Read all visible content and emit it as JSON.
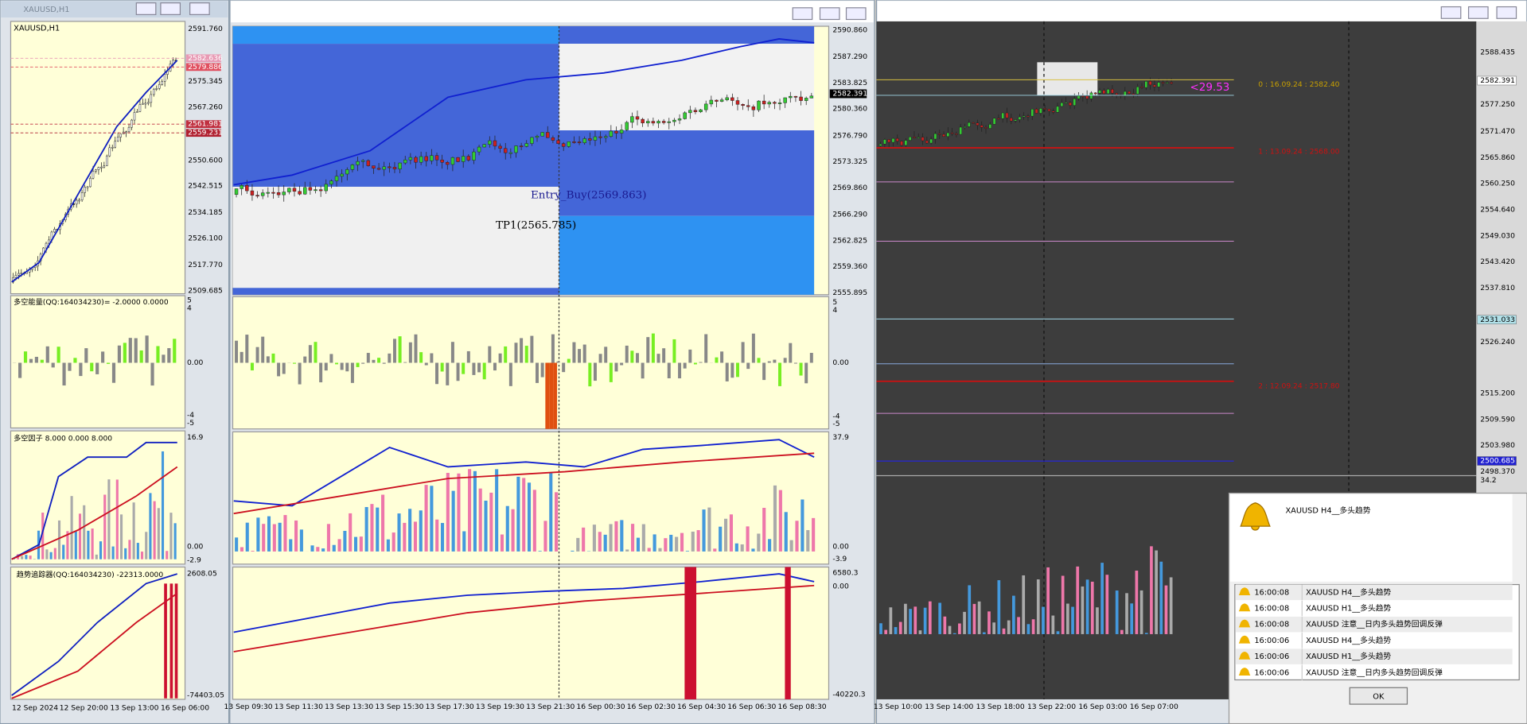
{
  "left_window": {
    "title": "XAUUSD,H1",
    "chart_label": "XAUUSD,H1",
    "price_axis": [
      "2591.760",
      "2575.345",
      "2567.260",
      "2550.600",
      "2542.515",
      "2534.185",
      "2526.100",
      "2517.770",
      "2509.685"
    ],
    "price_tags": [
      {
        "label": "2582.636",
        "color": "#e89ab4"
      },
      {
        "label": "2579.886",
        "color": "#e05060"
      },
      {
        "label": "2561.981",
        "color": "#c03040"
      },
      {
        "label": "2559.231",
        "color": "#b02030"
      }
    ],
    "indicator_1": {
      "label": "多空能量(QQ:164034230)= -2.0000 0.0000",
      "axis": [
        "5",
        "4",
        "0.00",
        "-4",
        "-5"
      ]
    },
    "indicator_2": {
      "label": "多空因子 8.000 0.000 8.000",
      "axis": [
        "16.9",
        "0.00",
        "-2.9"
      ]
    },
    "indicator_3": {
      "label": "趋势追踪器(QQ:164034230)  -22313.0000",
      "axis": [
        "2608.05",
        "-74403.05"
      ]
    },
    "time_axis": [
      "12 Sep 2024",
      "12 Sep 20:00",
      "13 Sep 13:00",
      "16 Sep 06:00"
    ]
  },
  "middle_window": {
    "price_axis": [
      "2590.860",
      "2587.290",
      "2583.825",
      "2580.360",
      "2576.790",
      "2573.325",
      "2569.860",
      "2566.290",
      "2562.825",
      "2559.360",
      "2555.895"
    ],
    "current_price": "2582.391",
    "annotations": [
      "Entry_Buy(2569.863)",
      "TP1(2565.785)"
    ],
    "indicator_1_axis": [
      "5",
      "4",
      "0.00",
      "-4",
      "-5"
    ],
    "indicator_2_axis": [
      "37.9",
      "0.00",
      "-3.9"
    ],
    "indicator_3_axis": [
      "6580.3",
      "0.00",
      "-40220.3"
    ],
    "time_axis": [
      "13 Sep 09:30",
      "13 Sep 11:30",
      "13 Sep 13:30",
      "13 Sep 15:30",
      "13 Sep 17:30",
      "13 Sep 19:30",
      "13 Sep 21:30",
      "16 Sep 00:30",
      "16 Sep 02:30",
      "16 Sep 04:30",
      "16 Sep 06:30",
      "16 Sep 08:30"
    ]
  },
  "right_window": {
    "price_axis": [
      "2588.435",
      "2577.250",
      "2571.470",
      "2565.860",
      "2560.250",
      "2554.640",
      "2549.030",
      "2543.420",
      "2537.810",
      "2526.240",
      "2515.200",
      "2509.590",
      "2503.980",
      "2498.370"
    ],
    "price_tags": [
      {
        "label": "2582.391",
        "color": "#ffffff"
      },
      {
        "label": "2531.033",
        "color": "#b0e0e8"
      },
      {
        "label": "2500.685",
        "color": "#2020d0"
      }
    ],
    "indicator_axis": "34.2",
    "delta_label": "<29.53",
    "levels": [
      {
        "label": "0 : 16.09.24 : 2582.40",
        "color": "#c8a000"
      },
      {
        "label": "1 : 13.09.24 : 2568.00",
        "color": "#d01010"
      },
      {
        "label": "2 : 12.09.24 : 2517.80",
        "color": "#d01010"
      }
    ],
    "time_axis": [
      "13 Sep 10:00",
      "13 Sep 14:00",
      "13 Sep 18:00",
      "13 Sep 22:00",
      "16 Sep 03:00",
      "16 Sep 07:00"
    ]
  },
  "alert": {
    "title": "XAUUSD  H4__多头趋势",
    "rows": [
      {
        "time": "16:00:08",
        "message": "XAUUSD  H4__多头趋势"
      },
      {
        "time": "16:00:08",
        "message": "XAUUSD  H1__多头趋势"
      },
      {
        "time": "16:00:08",
        "message": "XAUUSD  注意__日内多头趋势回调反弹"
      },
      {
        "time": "16:00:06",
        "message": "XAUUSD  H4__多头趋势"
      },
      {
        "time": "16:00:06",
        "message": "XAUUSD  H1__多头趋势"
      },
      {
        "time": "16:00:06",
        "message": "XAUUSD  注意__日内多头趋势回调反弹"
      }
    ],
    "button": "OK"
  }
}
